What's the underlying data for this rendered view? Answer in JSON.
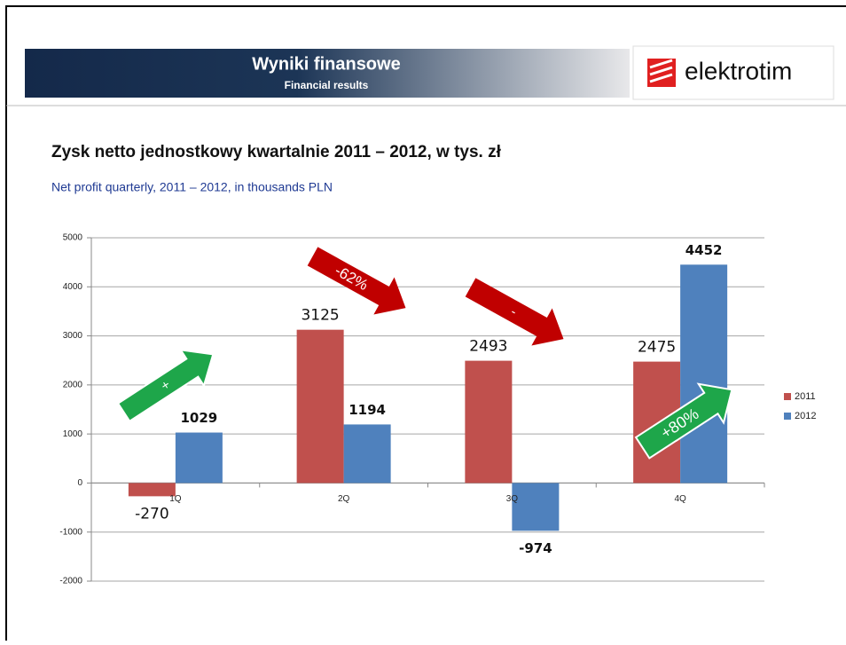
{
  "header": {
    "title": "Wyniki finansowe",
    "subtitle": "Financial results"
  },
  "logo": "elektrotim",
  "chart_data": {
    "type": "bar",
    "title": "Zysk netto jednostkowy kwartalnie 2011 – 2012, w tys. zł",
    "subtitle": "Net profit quarterly, 2011 – 2012, in thousands PLN",
    "categories": [
      "1Q",
      "2Q",
      "3Q",
      "4Q"
    ],
    "series": [
      {
        "name": "2011",
        "color": "#c0504d",
        "values": [
          -270,
          3125,
          2493,
          2475
        ]
      },
      {
        "name": "2012",
        "color": "#4f81bd",
        "values": [
          1029,
          1194,
          -974,
          4452
        ]
      }
    ],
    "ylim": [
      -2000,
      5000
    ],
    "yticks": [
      -2000,
      -1000,
      0,
      1000,
      2000,
      3000,
      4000,
      5000
    ],
    "grid": true,
    "legend": "right",
    "annotations": [
      "+",
      "-62%",
      "-",
      "+80%"
    ]
  }
}
